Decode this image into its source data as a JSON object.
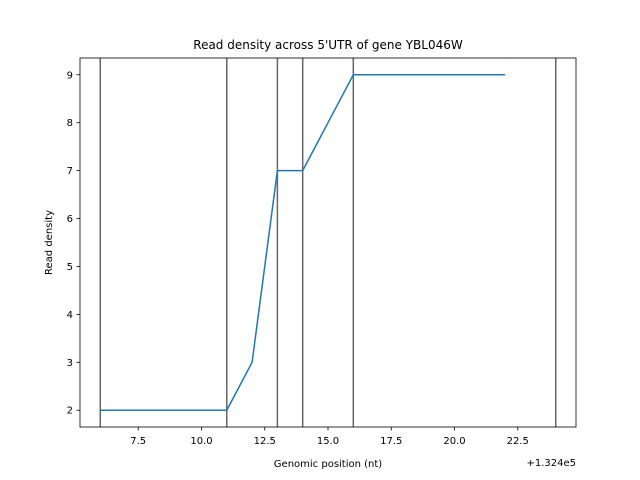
{
  "chart_data": {
    "type": "line",
    "title": "Read density across 5'UTR of gene YBL046W",
    "xlabel": "Genomic position (nt)",
    "ylabel": "Read density",
    "x_offset_label": "+1.324e5",
    "xlim": [
      5.2,
      24.8
    ],
    "ylim": [
      1.65,
      9.35
    ],
    "x_ticks": [
      7.5,
      10.0,
      12.5,
      15.0,
      17.5,
      20.0,
      22.5
    ],
    "x_tick_labels": [
      "7.5",
      "10.0",
      "12.5",
      "15.0",
      "17.5",
      "20.0",
      "22.5"
    ],
    "y_ticks": [
      2,
      3,
      4,
      5,
      6,
      7,
      8,
      9
    ],
    "y_tick_labels": [
      "2",
      "3",
      "4",
      "5",
      "6",
      "7",
      "8",
      "9"
    ],
    "grid": false,
    "series": [
      {
        "color": "#1f77b4",
        "x": [
          6,
          7,
          8,
          9,
          10,
          11,
          12,
          13,
          14,
          15,
          16,
          17,
          18,
          19,
          20,
          21,
          22
        ],
        "values": [
          2,
          2,
          2,
          2,
          2,
          2,
          3,
          7,
          7,
          8,
          9,
          9,
          9,
          9,
          9,
          9,
          9
        ]
      }
    ],
    "vertical_lines": {
      "color": "#666666",
      "x": [
        6,
        11,
        13,
        14,
        16,
        24
      ]
    }
  }
}
